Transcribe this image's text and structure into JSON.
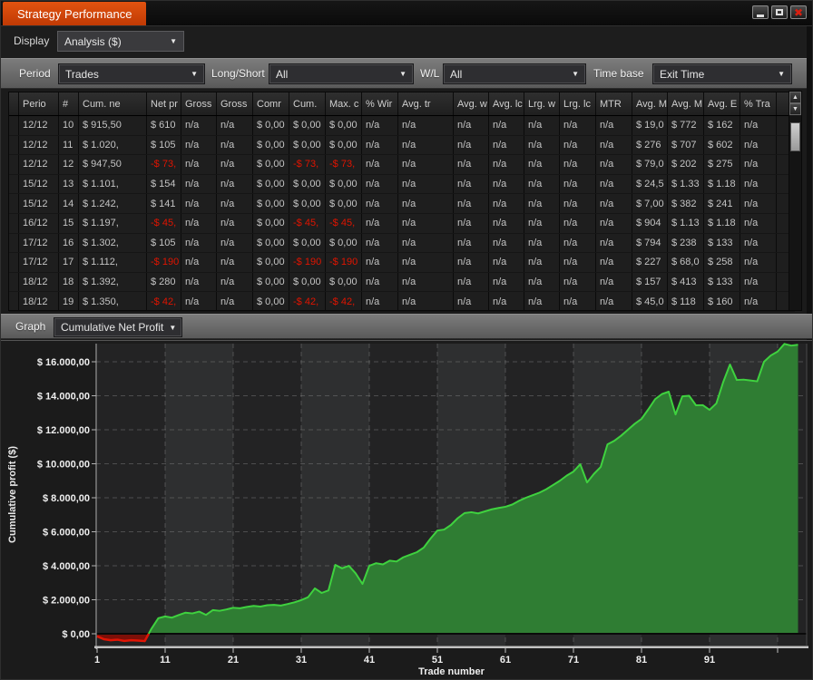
{
  "window": {
    "title": "Strategy Performance",
    "minimize_label": "minimize",
    "maximize_label": "maximize",
    "close_label": "close"
  },
  "display_bar": {
    "label": "Display",
    "value": "Analysis ($)"
  },
  "filter_bar": {
    "period_label": "Period",
    "period_value": "Trades",
    "longshort_label": "Long/Short",
    "longshort_value": "All",
    "wl_label": "W/L",
    "wl_value": "All",
    "timebase_label": "Time base",
    "timebase_value": "Exit Time"
  },
  "table": {
    "columns": [
      "Perio",
      "#",
      "Cum. ne",
      "Net pr",
      "Gross",
      "Gross",
      "Comr",
      "Cum.",
      "Max. c",
      "% Wir",
      "Avg. tr",
      "Avg. w",
      "Avg. lc",
      "Lrg. w",
      "Lrg. lc",
      "MTR",
      "Avg. M",
      "Avg. M",
      "Avg. E",
      "% Tra"
    ],
    "rows": [
      [
        "12/12",
        "10",
        "$ 915,50",
        "$ 610",
        "n/a",
        "n/a",
        "$ 0,00",
        "$ 0,00",
        "$ 0,00",
        "n/a",
        "n/a",
        "n/a",
        "n/a",
        "n/a",
        "n/a",
        "n/a",
        "$ 19,0",
        "$ 772",
        "$ 162",
        "n/a"
      ],
      [
        "12/12",
        "11",
        "$ 1.020,",
        "$ 105",
        "n/a",
        "n/a",
        "$ 0,00",
        "$ 0,00",
        "$ 0,00",
        "n/a",
        "n/a",
        "n/a",
        "n/a",
        "n/a",
        "n/a",
        "n/a",
        "$ 276",
        "$ 707",
        "$ 602",
        "n/a"
      ],
      [
        "12/12",
        "12",
        "$ 947,50",
        "-$ 73,",
        "n/a",
        "n/a",
        "$ 0,00",
        "-$ 73,",
        "-$ 73,",
        "n/a",
        "n/a",
        "n/a",
        "n/a",
        "n/a",
        "n/a",
        "n/a",
        "$ 79,0",
        "$ 202",
        "$ 275",
        "n/a"
      ],
      [
        "15/12",
        "13",
        "$ 1.101,",
        "$ 154",
        "n/a",
        "n/a",
        "$ 0,00",
        "$ 0,00",
        "$ 0,00",
        "n/a",
        "n/a",
        "n/a",
        "n/a",
        "n/a",
        "n/a",
        "n/a",
        "$ 24,5",
        "$ 1.33",
        "$ 1.18",
        "n/a"
      ],
      [
        "15/12",
        "14",
        "$ 1.242,",
        "$ 141",
        "n/a",
        "n/a",
        "$ 0,00",
        "$ 0,00",
        "$ 0,00",
        "n/a",
        "n/a",
        "n/a",
        "n/a",
        "n/a",
        "n/a",
        "n/a",
        "$ 7,00",
        "$ 382",
        "$ 241",
        "n/a"
      ],
      [
        "16/12",
        "15",
        "$ 1.197,",
        "-$ 45,",
        "n/a",
        "n/a",
        "$ 0,00",
        "-$ 45,",
        "-$ 45,",
        "n/a",
        "n/a",
        "n/a",
        "n/a",
        "n/a",
        "n/a",
        "n/a",
        "$ 904",
        "$ 1.13",
        "$ 1.18",
        "n/a"
      ],
      [
        "17/12",
        "16",
        "$ 1.302,",
        "$ 105",
        "n/a",
        "n/a",
        "$ 0,00",
        "$ 0,00",
        "$ 0,00",
        "n/a",
        "n/a",
        "n/a",
        "n/a",
        "n/a",
        "n/a",
        "n/a",
        "$ 794",
        "$ 238",
        "$ 133",
        "n/a"
      ],
      [
        "17/12",
        "17",
        "$ 1.112,",
        "-$ 190",
        "n/a",
        "n/a",
        "$ 0,00",
        "-$ 190",
        "-$ 190",
        "n/a",
        "n/a",
        "n/a",
        "n/a",
        "n/a",
        "n/a",
        "n/a",
        "$ 227",
        "$ 68,0",
        "$ 258",
        "n/a"
      ],
      [
        "18/12",
        "18",
        "$ 1.392,",
        "$ 280",
        "n/a",
        "n/a",
        "$ 0,00",
        "$ 0,00",
        "$ 0,00",
        "n/a",
        "n/a",
        "n/a",
        "n/a",
        "n/a",
        "n/a",
        "n/a",
        "$ 157",
        "$ 413",
        "$ 133",
        "n/a"
      ],
      [
        "18/12",
        "19",
        "$ 1.350,",
        "-$ 42,",
        "n/a",
        "n/a",
        "$ 0,00",
        "-$ 42,",
        "-$ 42,",
        "n/a",
        "n/a",
        "n/a",
        "n/a",
        "n/a",
        "n/a",
        "n/a",
        "$ 45,0",
        "$ 118",
        "$ 160",
        "n/a"
      ]
    ]
  },
  "graph_bar": {
    "label": "Graph",
    "value": "Cumulative Net Profit"
  },
  "chart_data": {
    "type": "area",
    "xlabel": "Trade number",
    "ylabel": "Cumulative profit ($)",
    "x_ticks": [
      "1",
      "11",
      "21",
      "31",
      "41",
      "51",
      "61",
      "71",
      "81",
      "91"
    ],
    "x_tick_values": [
      1,
      11,
      21,
      31,
      41,
      51,
      61,
      71,
      81,
      91
    ],
    "y_ticks": [
      "$ 16.000,00",
      "$ 14.000,00",
      "$ 12.000,00",
      "$ 10.000,00",
      "$ 8.000,00",
      "$ 6.000,00",
      "$ 4.000,00",
      "$ 2.000,00",
      "$ 0,00"
    ],
    "y_tick_values": [
      16000,
      14000,
      12000,
      10000,
      8000,
      6000,
      4000,
      2000,
      0
    ],
    "ylim": [
      -700,
      17100
    ],
    "grid": "dashed",
    "x_start": 1,
    "values": [
      -150,
      -320,
      -380,
      -350,
      -420,
      -380,
      -400,
      -430,
      305,
      915,
      1020,
      947,
      1101,
      1242,
      1197,
      1302,
      1112,
      1392,
      1350,
      1430,
      1530,
      1500,
      1580,
      1640,
      1600,
      1680,
      1700,
      1660,
      1750,
      1850,
      1980,
      2150,
      2670,
      2400,
      2550,
      4050,
      3850,
      4000,
      3550,
      2930,
      4000,
      4150,
      4080,
      4300,
      4250,
      4500,
      4650,
      4800,
      5070,
      5600,
      6070,
      6130,
      6400,
      6800,
      7100,
      7150,
      7080,
      7200,
      7320,
      7400,
      7470,
      7600,
      7820,
      8000,
      8150,
      8300,
      8500,
      8750,
      9000,
      9300,
      9540,
      9970,
      8900,
      9400,
      9810,
      11140,
      11350,
      11650,
      12000,
      12350,
      12640,
      13200,
      13800,
      14100,
      14240,
      12900,
      13970,
      14000,
      13440,
      13450,
      13170,
      13550,
      14800,
      15840,
      14930,
      14950,
      14900,
      14850,
      16000,
      16370,
      16600,
      17050,
      16950,
      17000
    ],
    "colors": {
      "profit_line": "#3fd23f",
      "profit_fill": "#2f7d33",
      "loss_line": "#e01505",
      "loss_fill": "#7d0f08",
      "band_dark": "#232324",
      "band_light": "#2e2f30",
      "accent": "#d9450a"
    }
  }
}
